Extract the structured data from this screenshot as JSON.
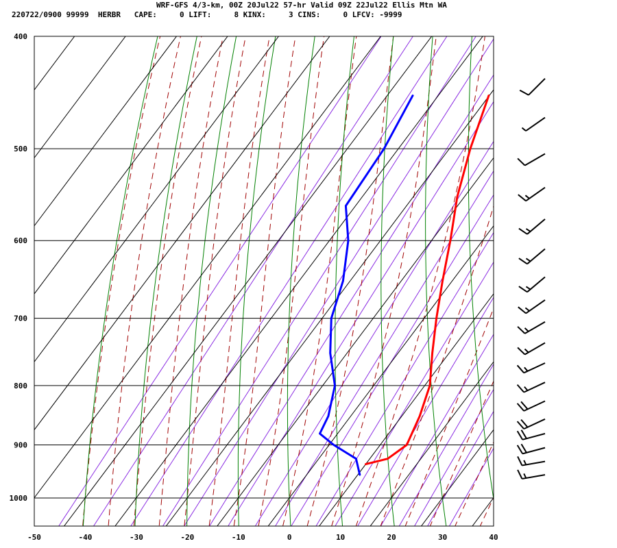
{
  "header": {
    "title": "WRF-GFS 4/3-km, 00Z 20Jul22 57-hr Valid 09Z 22Jul22 Ellis Mtn WA",
    "stats": "220722/0900 99999  HERBR   CAPE:     0 LIFT:     8 KINX:     3 CINS:     0 LFCV: -9999"
  },
  "chart_data": {
    "type": "line",
    "chart_kind": "skew-T log-P sounding",
    "x_axis": {
      "ticks": [
        -50,
        -40,
        -30,
        -20,
        -10,
        0,
        10,
        20,
        30,
        40
      ],
      "range": [
        -50,
        40
      ]
    },
    "y_axis": {
      "ticks": [
        400,
        500,
        600,
        700,
        800,
        900,
        1000
      ],
      "range": [
        400,
        1050
      ],
      "scale": "log"
    },
    "grid": true,
    "colors": {
      "temperature": "#ff0000",
      "dewpoint": "#0000ff",
      "isotherm_grid": "#000000",
      "dry_adiabat": "#008000",
      "moist_adiabat": "#a00000",
      "mixing_ratio": "#8a2be2",
      "wind_barb": "#000000"
    },
    "series": [
      {
        "key": "temperature",
        "points": [
          {
            "p": 450,
            "t": -20.1
          },
          {
            "p": 500,
            "t": -15.9
          },
          {
            "p": 550,
            "t": -11.4
          },
          {
            "p": 600,
            "t": -6.3
          },
          {
            "p": 650,
            "t": -1.9
          },
          {
            "p": 700,
            "t": 2.4
          },
          {
            "p": 750,
            "t": 6.7
          },
          {
            "p": 800,
            "t": 11.0
          },
          {
            "p": 850,
            "t": 13.5
          },
          {
            "p": 900,
            "t": 15.2
          },
          {
            "p": 925,
            "t": 13.5
          },
          {
            "p": 935,
            "t": 10.0
          }
        ]
      },
      {
        "key": "dewpoint",
        "points": [
          {
            "p": 450,
            "t": -35.0
          },
          {
            "p": 500,
            "t": -32.8
          },
          {
            "p": 560,
            "t": -31.9
          },
          {
            "p": 600,
            "t": -26.3
          },
          {
            "p": 650,
            "t": -21.4
          },
          {
            "p": 700,
            "t": -18.2
          },
          {
            "p": 750,
            "t": -13.3
          },
          {
            "p": 800,
            "t": -7.6
          },
          {
            "p": 850,
            "t": -4.4
          },
          {
            "p": 880,
            "t": -3.5
          },
          {
            "p": 900,
            "t": 0.9
          },
          {
            "p": 925,
            "t": 7.3
          },
          {
            "p": 955,
            "t": 10.4
          }
        ]
      }
    ],
    "wind_barbs": [
      {
        "p": 435,
        "dir": 225,
        "spd": 10
      },
      {
        "p": 470,
        "dir": 235,
        "spd": 5
      },
      {
        "p": 505,
        "dir": 240,
        "spd": 10
      },
      {
        "p": 540,
        "dir": 235,
        "spd": 15
      },
      {
        "p": 575,
        "dir": 230,
        "spd": 15
      },
      {
        "p": 610,
        "dir": 230,
        "spd": 15
      },
      {
        "p": 645,
        "dir": 230,
        "spd": 15
      },
      {
        "p": 675,
        "dir": 235,
        "spd": 15
      },
      {
        "p": 705,
        "dir": 240,
        "spd": 15
      },
      {
        "p": 735,
        "dir": 240,
        "spd": 15
      },
      {
        "p": 765,
        "dir": 245,
        "spd": 15
      },
      {
        "p": 795,
        "dir": 245,
        "spd": 15
      },
      {
        "p": 825,
        "dir": 245,
        "spd": 20
      },
      {
        "p": 855,
        "dir": 245,
        "spd": 20
      },
      {
        "p": 880,
        "dir": 255,
        "spd": 20
      },
      {
        "p": 905,
        "dir": 255,
        "spd": 20
      },
      {
        "p": 930,
        "dir": 260,
        "spd": 15
      },
      {
        "p": 955,
        "dir": 260,
        "spd": 15
      }
    ]
  }
}
